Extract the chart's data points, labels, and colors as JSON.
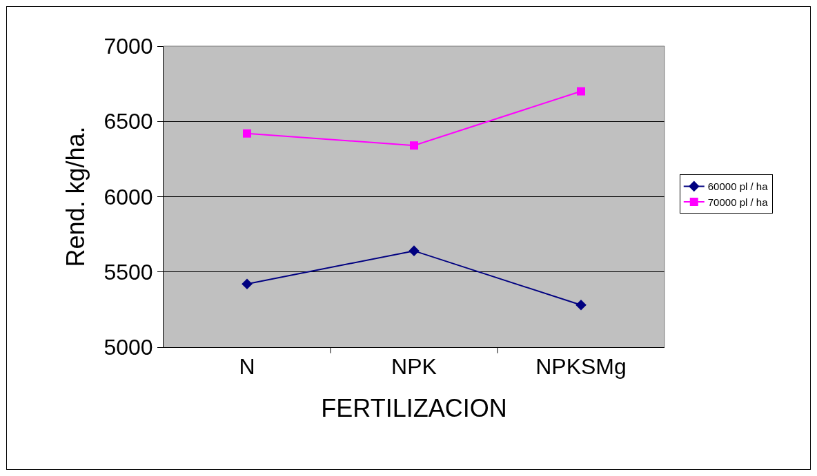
{
  "chart_data": {
    "type": "line",
    "xlabel": "FERTILIZACION",
    "ylabel": "Rend. kg/ha.",
    "categories": [
      "N",
      "NPK",
      "NPKSMg"
    ],
    "series": [
      {
        "name": "60000 pl / ha",
        "color": "#000080",
        "marker": "diamond",
        "values": [
          5420,
          5640,
          5280
        ]
      },
      {
        "name": "70000 pl / ha",
        "color": "#ff00ff",
        "marker": "square",
        "values": [
          6420,
          6340,
          6700
        ]
      }
    ],
    "ylim": [
      5000,
      7000
    ],
    "yticks": [
      5000,
      5500,
      6000,
      6500,
      7000
    ],
    "grid": "y",
    "legend": "right",
    "line_style": "solid"
  }
}
